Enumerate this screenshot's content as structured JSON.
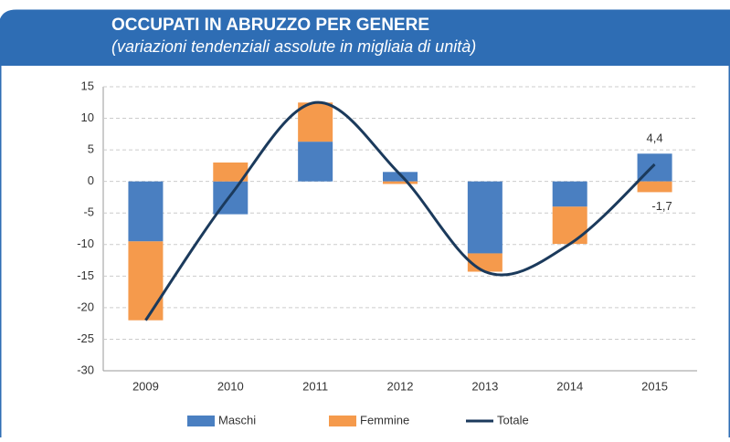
{
  "chart_data": {
    "type": "bar",
    "stacked": true,
    "title": "OCCUPATI IN ABRUZZO PER GENERE",
    "subtitle": "(variazioni tendenziali assolute in migliaia di unità)",
    "categories": [
      "2009",
      "2010",
      "2011",
      "2012",
      "2013",
      "2014",
      "2015"
    ],
    "series": [
      {
        "name": "Maschi",
        "type": "bar",
        "color": "#4a7fc1",
        "values": [
          -9.5,
          -5.2,
          6.3,
          1.5,
          -11.4,
          -4.0,
          4.4
        ],
        "value_labels": [
          null,
          null,
          null,
          null,
          null,
          null,
          "4,4"
        ]
      },
      {
        "name": "Femmine",
        "type": "bar",
        "color": "#f59a4c",
        "values": [
          -12.5,
          3.0,
          6.2,
          -0.4,
          -2.9,
          -5.9,
          -1.7
        ],
        "value_labels": [
          null,
          null,
          null,
          null,
          null,
          null,
          "-1,7"
        ]
      },
      {
        "name": "Totale",
        "type": "line",
        "smooth": true,
        "color": "#1b3a5c",
        "values": [
          -22.0,
          -2.2,
          12.5,
          1.1,
          -14.3,
          -9.9,
          2.7
        ]
      }
    ],
    "ylim": [
      -30,
      15
    ],
    "yticks": [
      -30,
      -25,
      -20,
      -15,
      -10,
      -5,
      0,
      5,
      10,
      15
    ],
    "grid": true,
    "legend": "bottom"
  }
}
